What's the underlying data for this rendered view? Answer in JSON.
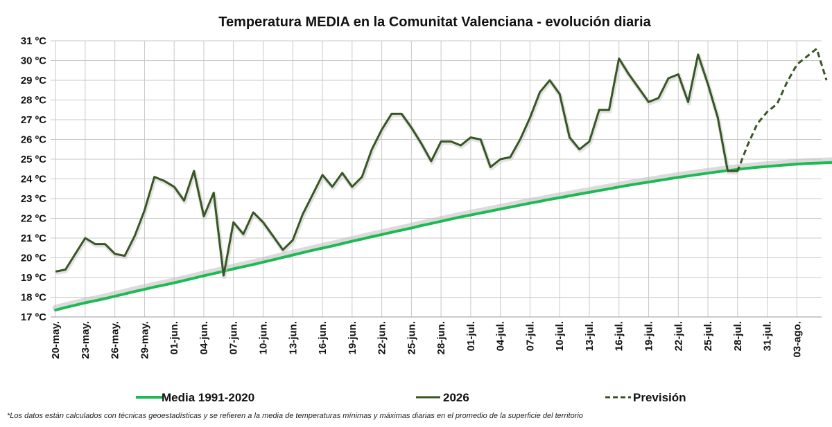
{
  "chart_data": {
    "type": "line",
    "title": "Temperatura MEDIA en la Comunitat Valenciana - evolución diaria",
    "ylim": [
      17,
      31
    ],
    "y_ticks": [
      "17 ºC",
      "18 ºC",
      "19 ºC",
      "20 ºC",
      "21 ºC",
      "22 ºC",
      "23 ºC",
      "24 ºC",
      "25 ºC",
      "26 ºC",
      "27 ºC",
      "28 ºC",
      "29 ºC",
      "30 ºC",
      "31 ºC"
    ],
    "x_tick_labels": [
      "20-may.",
      "23-may.",
      "26-may.",
      "29-may.",
      "01-jun.",
      "04-jun.",
      "07-jun.",
      "10-jun.",
      "13-jun.",
      "16-jun.",
      "19-jun.",
      "22-jun.",
      "25-jun.",
      "28-jun.",
      "01-jul.",
      "04-jul.",
      "07-jul.",
      "10-jul.",
      "13-jul.",
      "16-jul.",
      "19-jul.",
      "22-jul.",
      "25-jul.",
      "28-jul.",
      "31-jul.",
      "03-ago."
    ],
    "x_start": "20-may.",
    "x_end": "06-ago.",
    "grid": true,
    "legend_position": "bottom",
    "series": [
      {
        "name": "Media 1991-2020",
        "color": "#1db954",
        "style": "solid",
        "x_start": "20-may.",
        "values": [
          17.35,
          17.48,
          17.6,
          17.72,
          17.82,
          17.93,
          18.05,
          18.17,
          18.29,
          18.4,
          18.52,
          18.62,
          18.73,
          18.85,
          18.97,
          19.09,
          19.2,
          19.32,
          19.44,
          19.55,
          19.66,
          19.78,
          19.9,
          20.02,
          20.14,
          20.26,
          20.38,
          20.49,
          20.6,
          20.72,
          20.84,
          20.95,
          21.07,
          21.18,
          21.29,
          21.4,
          21.51,
          21.63,
          21.74,
          21.85,
          21.96,
          22.07,
          22.17,
          22.27,
          22.37,
          22.47,
          22.57,
          22.67,
          22.77,
          22.86,
          22.96,
          23.05,
          23.14,
          23.23,
          23.32,
          23.41,
          23.5,
          23.59,
          23.68,
          23.76,
          23.84,
          23.92,
          24.0,
          24.08,
          24.15,
          24.22,
          24.29,
          24.36,
          24.42,
          24.48,
          24.54,
          24.59,
          24.63,
          24.67,
          24.71,
          24.75,
          24.78,
          24.8,
          24.82,
          24.84,
          24.85,
          24.86,
          24.87,
          24.87,
          24.87,
          24.87,
          24.87,
          24.86,
          24.86,
          24.85,
          24.84,
          24.82
        ]
      },
      {
        "name": "2026",
        "color": "#375623",
        "style": "solid",
        "x_start": "20-may.",
        "values": [
          19.3,
          19.4,
          20.2,
          21.0,
          20.7,
          20.7,
          20.2,
          20.1,
          21.1,
          22.4,
          24.1,
          23.9,
          23.6,
          22.9,
          24.4,
          22.1,
          23.3,
          19.1,
          21.8,
          21.2,
          22.3,
          21.8,
          21.1,
          20.4,
          20.9,
          22.2,
          23.2,
          24.2,
          23.6,
          24.3,
          23.6,
          24.1,
          25.5,
          26.5,
          27.3,
          27.3,
          26.6,
          25.8,
          24.9,
          25.9,
          25.9,
          25.7,
          26.1,
          26.0,
          24.6,
          25.0,
          25.1,
          26.0,
          27.1,
          28.4,
          29.0,
          28.3,
          26.1,
          25.5,
          25.9,
          27.5,
          27.5,
          30.1,
          29.3,
          28.6,
          27.9,
          28.1,
          29.1,
          29.3,
          27.9,
          30.3,
          28.8,
          27.1,
          24.4,
          24.4
        ]
      },
      {
        "name": "Previsión",
        "color": "#375623",
        "style": "dashed",
        "x_start": "27-jul.",
        "values": [
          24.4,
          24.4,
          25.7,
          26.8,
          27.4,
          27.8,
          28.9,
          29.8,
          30.2,
          30.6,
          29.0
        ]
      }
    ]
  },
  "footnote": "*Los datos están calculados con técnicas geoestadísticas y se refieren a la media de temperaturas mínimas y máximas diarias en el promedio de la superficie del territorio"
}
